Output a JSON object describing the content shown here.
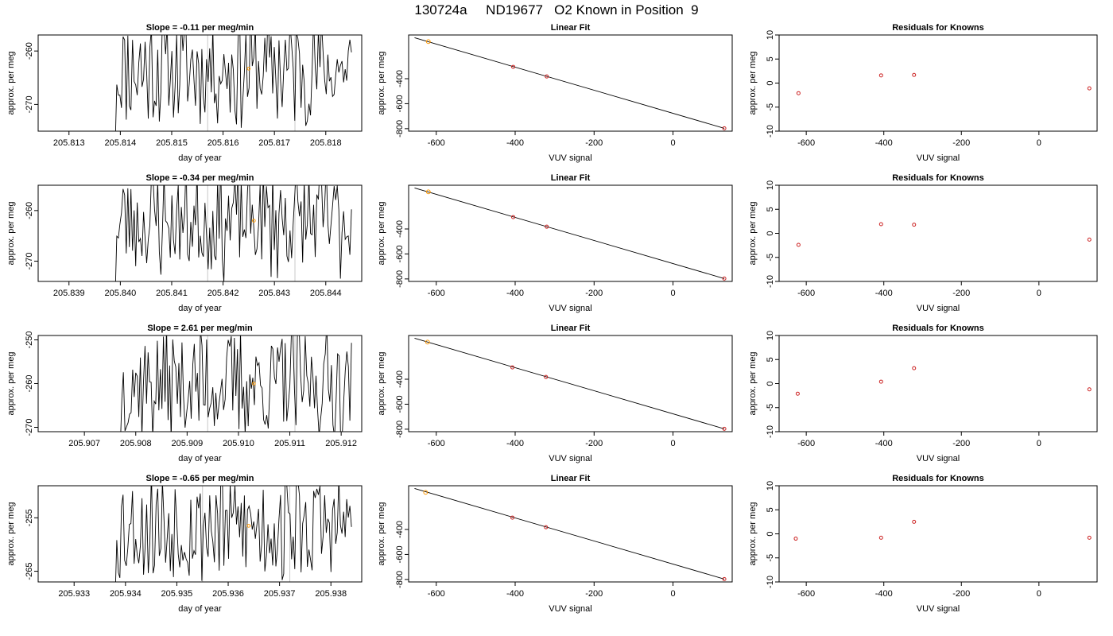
{
  "figure": {
    "title": "130724a     ND19677   O2 Known in Position  9"
  },
  "colors": {
    "trace": "#000000",
    "guide_line": "#c8c8c8",
    "highlight_point": "#ff9900",
    "residual_point": "#cc2222",
    "fit_point": "#cc2222"
  },
  "rows": [
    {
      "trace": {
        "title": "Slope =  -0.11  per meg/min",
        "xlabel": "day of year",
        "ylabel": "approx. per meg",
        "xlim": [
          205.8124,
          205.8187
        ],
        "ylim": [
          -275,
          -257
        ],
        "xticks": [
          205.813,
          205.814,
          205.815,
          205.816,
          205.817,
          205.818
        ],
        "yticks": [
          -260,
          -270
        ],
        "guides": [
          205.8157,
          205.8174
        ],
        "marker": {
          "x": 205.8165,
          "y": -263.3
        },
        "data_start": 205.8139,
        "data_end": 205.8185,
        "seed": 11
      },
      "fit": {
        "title": "Linear Fit",
        "xlabel": "VUV signal",
        "ylabel": "approx. per meg",
        "xlim": [
          -670,
          150
        ],
        "ylim": [
          -820,
          -50
        ],
        "xticks": [
          -600,
          -400,
          -200,
          0
        ],
        "yticks": [
          -400,
          -600,
          -800
        ],
        "line": {
          "x": [
            -655,
            130
          ],
          "y": [
            -72,
            -797
          ]
        },
        "points": [
          {
            "x": -620,
            "y": -103,
            "highlight": true
          },
          {
            "x": -405,
            "y": -305,
            "highlight": false
          },
          {
            "x": -320,
            "y": -382,
            "highlight": false
          },
          {
            "x": 130,
            "y": -797,
            "highlight": false
          }
        ]
      },
      "residuals": {
        "title": "Residuals for Knowns",
        "xlabel": "VUV signal",
        "ylabel": "approx. per meg",
        "xlim": [
          -670,
          150
        ],
        "ylim": [
          -10,
          10
        ],
        "xticks": [
          -600,
          -400,
          -200,
          0
        ],
        "yticks": [
          10,
          5,
          0,
          -5,
          -10
        ],
        "points": [
          {
            "x": -620,
            "y": -2.1
          },
          {
            "x": -407,
            "y": 1.6
          },
          {
            "x": -322,
            "y": 1.7
          },
          {
            "x": 130,
            "y": -1.1
          }
        ]
      }
    },
    {
      "trace": {
        "title": "Slope =  -0.34  per meg/min",
        "xlabel": "day of year",
        "ylabel": "approx. per meg",
        "xlim": [
          205.8384,
          205.8447
        ],
        "ylim": [
          -274,
          -255
        ],
        "xticks": [
          205.839,
          205.84,
          205.841,
          205.842,
          205.843,
          205.844
        ],
        "yticks": [
          -260,
          -270
        ],
        "guides": [
          205.8417,
          205.8434
        ],
        "marker": {
          "x": 205.8426,
          "y": -262.0
        },
        "data_start": 205.8399,
        "data_end": 205.8445,
        "seed": 23
      },
      "fit": {
        "title": "Linear Fit",
        "xlabel": "VUV signal",
        "ylabel": "approx. per meg",
        "xlim": [
          -670,
          150
        ],
        "ylim": [
          -820,
          -50
        ],
        "xticks": [
          -600,
          -400,
          -200,
          0
        ],
        "yticks": [
          -400,
          -600,
          -800
        ],
        "line": {
          "x": [
            -655,
            130
          ],
          "y": [
            -72,
            -797
          ]
        },
        "points": [
          {
            "x": -620,
            "y": -103,
            "highlight": true
          },
          {
            "x": -405,
            "y": -305,
            "highlight": false
          },
          {
            "x": -320,
            "y": -382,
            "highlight": false
          },
          {
            "x": 130,
            "y": -797,
            "highlight": false
          }
        ]
      },
      "residuals": {
        "title": "Residuals for Knowns",
        "xlabel": "VUV signal",
        "ylabel": "approx. per meg",
        "xlim": [
          -670,
          150
        ],
        "ylim": [
          -10,
          10
        ],
        "xticks": [
          -600,
          -400,
          -200,
          0
        ],
        "yticks": [
          10,
          5,
          0,
          -5,
          -10
        ],
        "points": [
          {
            "x": -620,
            "y": -2.4
          },
          {
            "x": -407,
            "y": 1.9
          },
          {
            "x": -322,
            "y": 1.8
          },
          {
            "x": 130,
            "y": -1.3
          }
        ]
      }
    },
    {
      "trace": {
        "title": "Slope =  2.61  per meg/min",
        "xlabel": "day of year",
        "ylabel": "approx. per meg",
        "xlim": [
          205.9061,
          205.9124
        ],
        "ylim": [
          -271,
          -249
        ],
        "xticks": [
          205.907,
          205.908,
          205.909,
          205.91,
          205.911,
          205.912
        ],
        "yticks": [
          -250,
          -260,
          -270
        ],
        "guides": [
          205.9094,
          205.9111
        ],
        "marker": {
          "x": 205.9103,
          "y": -260.0
        },
        "data_start": 205.9077,
        "data_end": 205.9122,
        "seed": 37
      },
      "fit": {
        "title": "Linear Fit",
        "xlabel": "VUV signal",
        "ylabel": "approx. per meg",
        "xlim": [
          -670,
          150
        ],
        "ylim": [
          -820,
          -50
        ],
        "xticks": [
          -600,
          -400,
          -200,
          0
        ],
        "yticks": [
          -400,
          -600,
          -800
        ],
        "line": {
          "x": [
            -655,
            130
          ],
          "y": [
            -72,
            -797
          ]
        },
        "points": [
          {
            "x": -622,
            "y": -103,
            "highlight": true
          },
          {
            "x": -407,
            "y": -305,
            "highlight": false
          },
          {
            "x": -322,
            "y": -382,
            "highlight": false
          },
          {
            "x": 130,
            "y": -797,
            "highlight": false
          }
        ]
      },
      "residuals": {
        "title": "Residuals for Knowns",
        "xlabel": "VUV signal",
        "ylabel": "approx. per meg",
        "xlim": [
          -670,
          150
        ],
        "ylim": [
          -10,
          10
        ],
        "xticks": [
          -600,
          -400,
          -200,
          0
        ],
        "yticks": [
          10,
          5,
          0,
          -5,
          -10
        ],
        "points": [
          {
            "x": -622,
            "y": -2.1
          },
          {
            "x": -407,
            "y": 0.4
          },
          {
            "x": -322,
            "y": 3.2
          },
          {
            "x": 130,
            "y": -1.2
          }
        ]
      }
    },
    {
      "trace": {
        "title": "Slope =  -0.65  per meg/min",
        "xlabel": "day of year",
        "ylabel": "approx. per meg",
        "xlim": [
          205.9323,
          205.9386
        ],
        "ylim": [
          -267,
          -249
        ],
        "xticks": [
          205.933,
          205.934,
          205.935,
          205.936,
          205.937,
          205.938
        ],
        "yticks": [
          -255,
          -265
        ],
        "guides": [
          205.9355,
          205.9372
        ],
        "marker": {
          "x": 205.9364,
          "y": -256.5
        },
        "data_start": 205.9338,
        "data_end": 205.9384,
        "seed": 53
      },
      "fit": {
        "title": "Linear Fit",
        "xlabel": "VUV signal",
        "ylabel": "approx. per meg",
        "xlim": [
          -670,
          150
        ],
        "ylim": [
          -820,
          -50
        ],
        "xticks": [
          -600,
          -400,
          -200,
          0
        ],
        "yticks": [
          -400,
          -600,
          -800
        ],
        "line": {
          "x": [
            -655,
            130
          ],
          "y": [
            -72,
            -797
          ]
        },
        "points": [
          {
            "x": -627,
            "y": -103,
            "highlight": true
          },
          {
            "x": -407,
            "y": -305,
            "highlight": false
          },
          {
            "x": -322,
            "y": -382,
            "highlight": false
          },
          {
            "x": 130,
            "y": -797,
            "highlight": false
          }
        ]
      },
      "residuals": {
        "title": "Residuals for Knowns",
        "xlabel": "VUV signal",
        "ylabel": "approx. per meg",
        "xlim": [
          -670,
          150
        ],
        "ylim": [
          -10,
          10
        ],
        "xticks": [
          -600,
          -400,
          -200,
          0
        ],
        "yticks": [
          10,
          5,
          0,
          -5,
          -10
        ],
        "points": [
          {
            "x": -627,
            "y": -1.0
          },
          {
            "x": -407,
            "y": -0.8
          },
          {
            "x": -322,
            "y": 2.5
          },
          {
            "x": 130,
            "y": -0.8
          }
        ]
      }
    }
  ],
  "chart_data": [
    {
      "type": "line",
      "panel": "row1-trace",
      "title": "Slope =  -0.11  per meg/min",
      "xlabel": "day of year",
      "ylabel": "approx. per meg",
      "xlim": [
        205.8124,
        205.8187
      ],
      "ylim": [
        -275,
        -257
      ]
    },
    {
      "type": "scatter",
      "panel": "row1-fit",
      "title": "Linear Fit",
      "xlabel": "VUV signal",
      "ylabel": "approx. per meg",
      "x": [
        -620,
        -405,
        -320,
        130
      ],
      "y": [
        -103,
        -305,
        -382,
        -797
      ]
    },
    {
      "type": "scatter",
      "panel": "row1-residuals",
      "title": "Residuals for Knowns",
      "xlabel": "VUV signal",
      "ylabel": "approx. per meg",
      "x": [
        -620,
        -407,
        -322,
        130
      ],
      "y": [
        -2.1,
        1.6,
        1.7,
        -1.1
      ]
    },
    {
      "type": "line",
      "panel": "row2-trace",
      "title": "Slope =  -0.34  per meg/min",
      "xlabel": "day of year",
      "ylabel": "approx. per meg",
      "xlim": [
        205.8384,
        205.8447
      ],
      "ylim": [
        -274,
        -255
      ]
    },
    {
      "type": "scatter",
      "panel": "row2-fit",
      "title": "Linear Fit",
      "xlabel": "VUV signal",
      "ylabel": "approx. per meg",
      "x": [
        -620,
        -405,
        -320,
        130
      ],
      "y": [
        -103,
        -305,
        -382,
        -797
      ]
    },
    {
      "type": "scatter",
      "panel": "row2-residuals",
      "title": "Residuals for Knowns",
      "xlabel": "VUV signal",
      "ylabel": "approx. per meg",
      "x": [
        -620,
        -407,
        -322,
        130
      ],
      "y": [
        -2.4,
        1.9,
        1.8,
        -1.3
      ]
    },
    {
      "type": "line",
      "panel": "row3-trace",
      "title": "Slope =  2.61  per meg/min",
      "xlabel": "day of year",
      "ylabel": "approx. per meg",
      "xlim": [
        205.9061,
        205.9124
      ],
      "ylim": [
        -271,
        -249
      ]
    },
    {
      "type": "scatter",
      "panel": "row3-fit",
      "title": "Linear Fit",
      "xlabel": "VUV signal",
      "ylabel": "approx. per meg",
      "x": [
        -622,
        -407,
        -322,
        130
      ],
      "y": [
        -103,
        -305,
        -382,
        -797
      ]
    },
    {
      "type": "scatter",
      "panel": "row3-residuals",
      "title": "Residuals for Knowns",
      "xlabel": "VUV signal",
      "ylabel": "approx. per meg",
      "x": [
        -622,
        -407,
        -322,
        130
      ],
      "y": [
        -2.1,
        0.4,
        3.2,
        -1.2
      ]
    },
    {
      "type": "line",
      "panel": "row4-trace",
      "title": "Slope =  -0.65  per meg/min",
      "xlabel": "day of year",
      "ylabel": "approx. per meg",
      "xlim": [
        205.9323,
        205.9386
      ],
      "ylim": [
        -267,
        -249
      ]
    },
    {
      "type": "scatter",
      "panel": "row4-fit",
      "title": "Linear Fit",
      "xlabel": "VUV signal",
      "ylabel": "approx. per meg",
      "x": [
        -627,
        -407,
        -322,
        130
      ],
      "y": [
        -103,
        -305,
        -382,
        -797
      ]
    },
    {
      "type": "scatter",
      "panel": "row4-residuals",
      "title": "Residuals for Knowns",
      "xlabel": "VUV signal",
      "ylabel": "approx. per meg",
      "x": [
        -627,
        -407,
        -322,
        130
      ],
      "y": [
        -1.0,
        -0.8,
        2.5,
        -0.8
      ]
    }
  ]
}
